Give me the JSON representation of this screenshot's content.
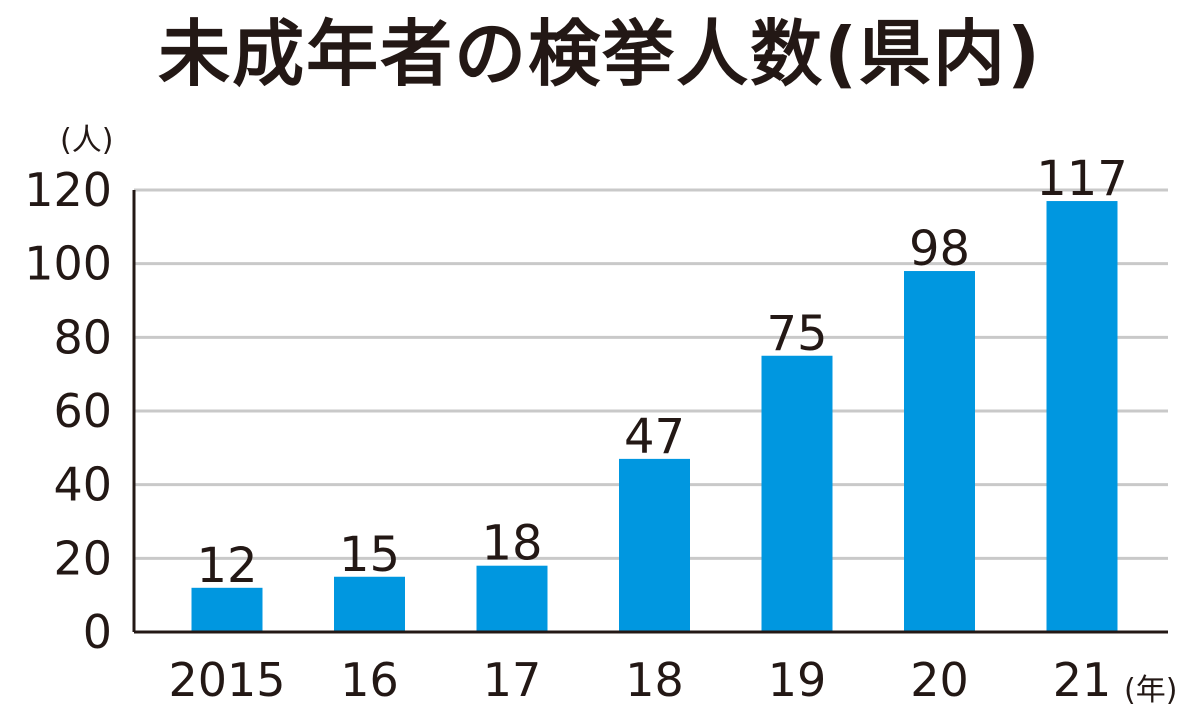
{
  "chart_data": {
    "type": "bar",
    "title": "未成年者の検挙人数(県内)",
    "ylabel": "(人)",
    "xlabel": "(年)",
    "categories": [
      "2015",
      "16",
      "17",
      "18",
      "19",
      "20",
      "21"
    ],
    "values": [
      12,
      15,
      18,
      47,
      75,
      98,
      117
    ],
    "ylim": [
      0,
      120
    ],
    "yticks": [
      "0",
      "20",
      "40",
      "60",
      "80",
      "100",
      "120"
    ],
    "grid": true,
    "bar_color": "#0097e0"
  }
}
